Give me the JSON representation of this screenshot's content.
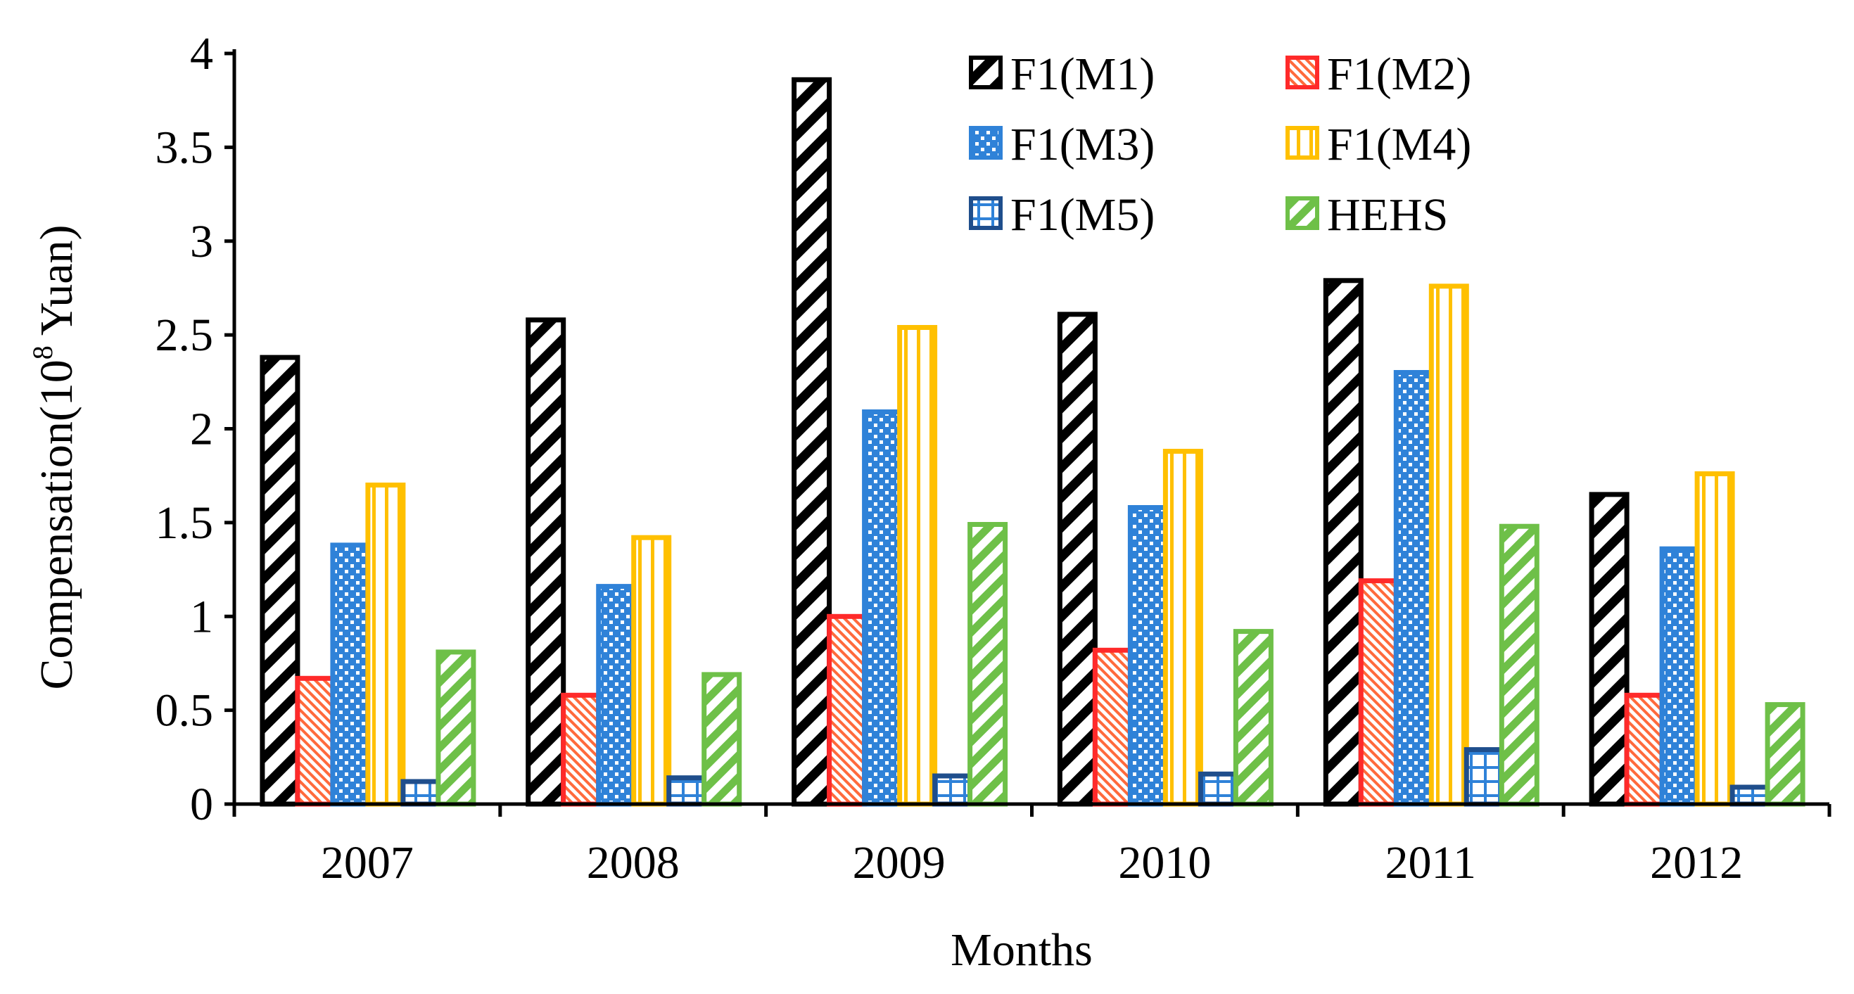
{
  "chart_data": {
    "type": "bar",
    "title": "",
    "xlabel": "Months",
    "ylabel": "Compensation(10",
    "ylabel_sup": "8",
    "ylabel_tail": " Yuan)",
    "categories": [
      "2007",
      "2008",
      "2009",
      "2010",
      "2011",
      "2012"
    ],
    "ylim": [
      0,
      4
    ],
    "yticks": [
      "0",
      "0.5",
      "1",
      "1.5",
      "2",
      "2.5",
      "3",
      "3.5",
      "4"
    ],
    "yticks_values": [
      0,
      0.5,
      1,
      1.5,
      2,
      2.5,
      3,
      3.5,
      4
    ],
    "series": [
      {
        "name": "F1(M1)",
        "values": [
          2.38,
          2.58,
          3.86,
          2.61,
          2.79,
          1.65
        ],
        "color": "#000000",
        "pattern": "diag-wide"
      },
      {
        "name": "F1(M2)",
        "values": [
          0.67,
          0.58,
          1.0,
          0.82,
          1.19,
          0.58
        ],
        "color": "#ff2a2a",
        "pattern": "diag-fine"
      },
      {
        "name": "F1(M3)",
        "values": [
          1.38,
          1.16,
          2.09,
          1.58,
          2.3,
          1.36
        ],
        "color": "#2f82d8",
        "pattern": "dots"
      },
      {
        "name": "F1(M4)",
        "values": [
          1.7,
          1.42,
          2.54,
          1.88,
          2.76,
          1.76
        ],
        "color": "#ffc000",
        "pattern": "vlines"
      },
      {
        "name": "F1(M5)",
        "values": [
          0.12,
          0.14,
          0.15,
          0.16,
          0.29,
          0.09
        ],
        "color": "#1f4e8c",
        "pattern": "grid"
      },
      {
        "name": "HEHS",
        "values": [
          0.81,
          0.69,
          1.49,
          0.92,
          1.48,
          0.53
        ],
        "color": "#6ec048",
        "pattern": "diag-mid"
      }
    ],
    "legend_position": "top-right",
    "grid": false
  }
}
